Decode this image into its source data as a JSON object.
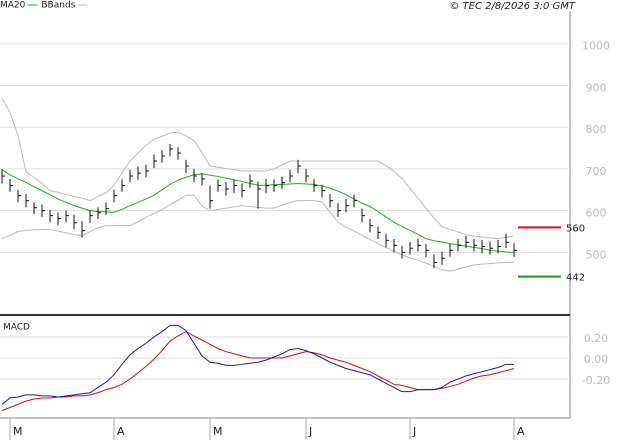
{
  "header": {
    "credit": "© TEC 2/8/2026 3:0 GMT"
  },
  "chart_data": [
    {
      "type": "ohlc",
      "categories": [
        null,
        "M",
        null,
        null,
        null,
        null,
        null,
        null,
        null,
        null,
        null,
        null,
        null,
        null,
        "A",
        null,
        null,
        null,
        null,
        null,
        null,
        null,
        null,
        null,
        null,
        null,
        "M",
        null,
        null,
        null,
        null,
        null,
        null,
        null,
        null,
        null,
        null,
        null,
        "J",
        null,
        null,
        null,
        null,
        null,
        null,
        null,
        null,
        null,
        null,
        null,
        null,
        "J",
        null,
        null,
        null,
        null,
        null,
        null,
        null,
        null,
        null,
        null,
        null,
        null,
        "A"
      ],
      "ohlc": {
        "color": "#111",
        "close": [
          683,
          660,
          636,
          624,
          607,
          600,
          588,
          581,
          588,
          571,
          552,
          588,
          595,
          605,
          636,
          660,
          683,
          690,
          695,
          719,
          731,
          748,
          738,
          707,
          683,
          676,
          624,
          660,
          652,
          660,
          648,
          671,
          652,
          660,
          660,
          667,
          683,
          707,
          683,
          660,
          648,
          624,
          600,
          612,
          624,
          588,
          564,
          548,
          529,
          517,
          500,
          510,
          517,
          505,
          476,
          486,
          505,
          517,
          524,
          517,
          514,
          510,
          514,
          524,
          505
        ],
        "high": [
          700,
          676,
          650,
          640,
          620,
          615,
          602,
          596,
          600,
          590,
          575,
          602,
          608,
          620,
          650,
          675,
          698,
          706,
          710,
          735,
          745,
          760,
          752,
          722,
          700,
          690,
          660,
          675,
          668,
          675,
          665,
          686,
          670,
          676,
          675,
          682,
          698,
          722,
          700,
          676,
          662,
          640,
          618,
          628,
          638,
          605,
          580,
          562,
          545,
          532,
          516,
          525,
          532,
          520,
          495,
          502,
          520,
          532,
          540,
          532,
          530,
          526,
          530,
          545,
          522
        ],
        "low": [
          665,
          645,
          620,
          608,
          592,
          585,
          572,
          565,
          572,
          555,
          535,
          570,
          580,
          590,
          620,
          645,
          668,
          674,
          680,
          702,
          715,
          730,
          722,
          690,
          668,
          660,
          605,
          645,
          636,
          642,
          632,
          655,
          605,
          642,
          645,
          652,
          668,
          690,
          668,
          645,
          632,
          608,
          585,
          596,
          608,
          572,
          548,
          532,
          512,
          500,
          485,
          495,
          502,
          488,
          462,
          470,
          490,
          502,
          510,
          502,
          498,
          495,
          498,
          510,
          490
        ]
      },
      "series": [
        {
          "name": "MA20",
          "color": "#22aa22",
          "values": [
            698,
            686,
            676,
            668,
            657,
            648,
            638,
            628,
            620,
            612,
            606,
            600,
            598,
            597,
            596,
            603,
            612,
            620,
            628,
            637,
            650,
            663,
            673,
            680,
            686,
            688,
            685,
            682,
            678,
            674,
            670,
            665,
            661,
            661,
            662,
            663,
            664,
            665,
            664,
            663,
            659,
            654,
            647,
            638,
            628,
            618,
            610,
            598,
            585,
            572,
            562,
            553,
            543,
            533,
            528,
            525,
            521,
            518,
            515,
            512,
            509,
            505,
            503,
            501,
            500
          ]
        },
        {
          "name": "BBands",
          "color": "#bbbbbb",
          "upper": [
            870,
            835,
            780,
            693,
            680,
            665,
            648,
            644,
            639,
            634,
            630,
            624,
            634,
            643,
            662,
            690,
            719,
            738,
            757,
            771,
            778,
            786,
            788,
            779,
            768,
            739,
            707,
            704,
            701,
            698,
            695,
            695,
            695,
            695,
            700,
            710,
            719,
            719,
            719,
            719,
            719,
            719,
            719,
            719,
            719,
            719,
            719,
            719,
            708,
            694,
            677,
            653,
            630,
            606,
            582,
            562,
            555,
            549,
            543,
            539,
            537,
            535,
            533,
            536,
            540
          ],
          "lower": [
            533,
            541,
            550,
            553,
            554,
            555,
            555,
            551,
            547,
            543,
            540,
            550,
            559,
            564,
            564,
            564,
            564,
            574,
            584,
            593,
            602,
            614,
            625,
            637,
            637,
            611,
            600,
            603,
            606,
            609,
            612,
            610,
            608,
            606,
            606,
            613,
            619,
            624,
            624,
            624,
            621,
            597,
            573,
            560,
            551,
            541,
            531,
            521,
            512,
            502,
            494,
            487,
            481,
            474,
            467,
            458,
            455,
            460,
            465,
            470,
            472,
            473,
            475,
            476,
            476
          ]
        }
      ],
      "levels": [
        {
          "value": 560,
          "color": "#dd1111"
        },
        {
          "value": 442,
          "color": "#119911"
        }
      ],
      "ylim": [
        350,
        1076
      ],
      "yticks": [
        500,
        600,
        700,
        800,
        900,
        1000
      ],
      "grid": true
    },
    {
      "type": "line",
      "title": "MACD",
      "series": [
        {
          "color": "#1a1aaa",
          "values": [
            -0.44,
            -0.38,
            -0.37,
            -0.35,
            -0.35,
            -0.36,
            -0.36,
            -0.37,
            -0.36,
            -0.35,
            -0.34,
            -0.33,
            -0.28,
            -0.23,
            -0.16,
            -0.06,
            0.03,
            0.09,
            0.14,
            0.2,
            0.25,
            0.31,
            0.31,
            0.26,
            0.14,
            0.02,
            -0.04,
            -0.05,
            -0.07,
            -0.07,
            -0.06,
            -0.05,
            -0.04,
            -0.02,
            0.01,
            0.04,
            0.08,
            0.09,
            0.07,
            0.04,
            0,
            -0.04,
            -0.07,
            -0.1,
            -0.12,
            -0.14,
            -0.16,
            -0.2,
            -0.24,
            -0.28,
            -0.32,
            -0.32,
            -0.3,
            -0.3,
            -0.3,
            -0.28,
            -0.23,
            -0.2,
            -0.17,
            -0.15,
            -0.13,
            -0.11,
            -0.09,
            -0.06,
            -0.06
          ]
        },
        {
          "color": "#cc1111",
          "values": [
            -0.5,
            -0.47,
            -0.44,
            -0.41,
            -0.39,
            -0.38,
            -0.38,
            -0.37,
            -0.37,
            -0.36,
            -0.36,
            -0.35,
            -0.33,
            -0.3,
            -0.28,
            -0.25,
            -0.2,
            -0.14,
            -0.08,
            -0.01,
            0.07,
            0.16,
            0.21,
            0.25,
            0.21,
            0.17,
            0.13,
            0.09,
            0.06,
            0.04,
            0.02,
            0,
            0,
            0,
            0,
            0,
            0.02,
            0.04,
            0.06,
            0.05,
            0.03,
            0,
            -0.02,
            -0.04,
            -0.07,
            -0.1,
            -0.13,
            -0.17,
            -0.21,
            -0.25,
            -0.26,
            -0.28,
            -0.3,
            -0.3,
            -0.3,
            -0.29,
            -0.27,
            -0.25,
            -0.22,
            -0.19,
            -0.17,
            -0.16,
            -0.14,
            -0.12,
            -0.1
          ]
        }
      ],
      "ylim": [
        -0.57,
        0.38
      ],
      "yticks": [
        {
          "value": 0.2,
          "label": "0.20"
        },
        {
          "value": 0,
          "label": "0.00"
        },
        {
          "value": -0.2,
          "label": "-0.20"
        }
      ],
      "grid": true
    }
  ]
}
